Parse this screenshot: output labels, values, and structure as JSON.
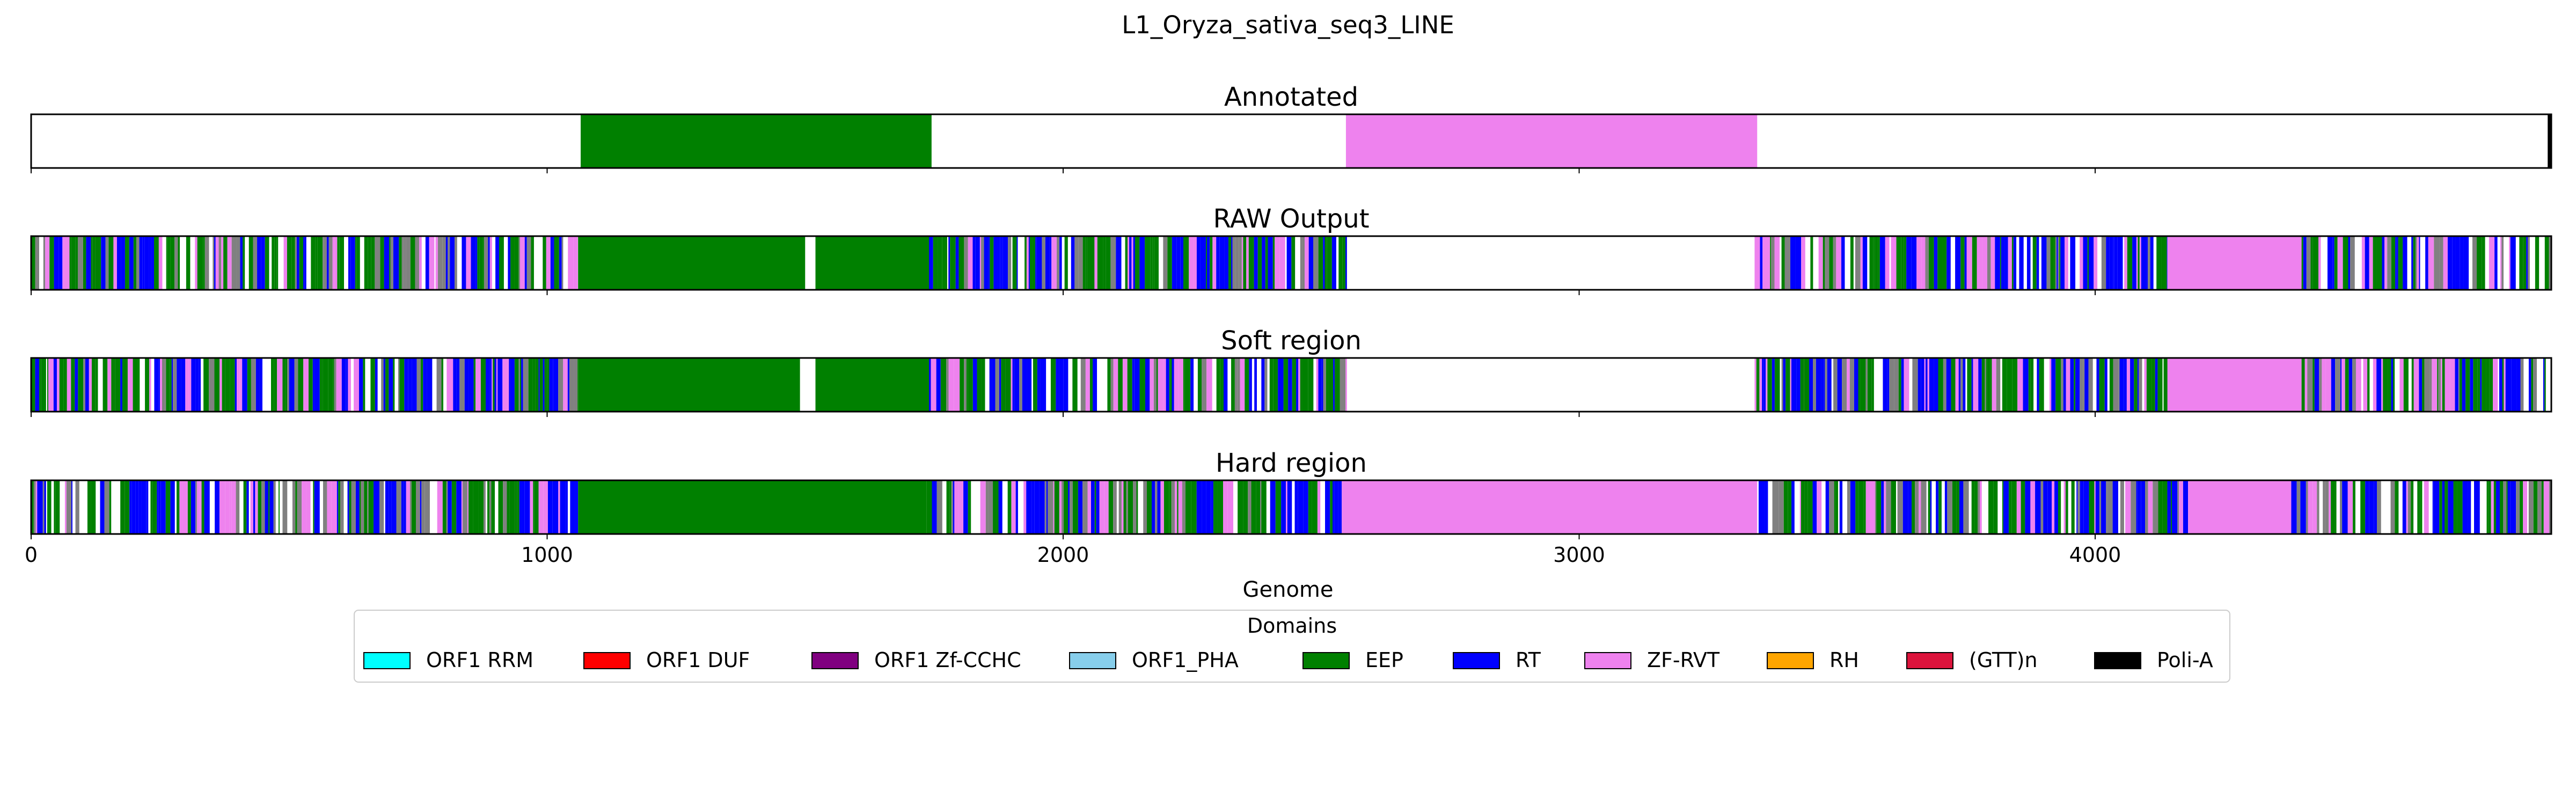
{
  "chart_data": {
    "type": "track",
    "title": "L1_Oryza_sativa_seq3_LINE",
    "xlabel": "Genome",
    "xlim": [
      0,
      4884
    ],
    "x_ticks": [
      0,
      1000,
      2000,
      3000,
      4000
    ],
    "panels": [
      {
        "title": "Annotated",
        "segments": [
          {
            "start": 0,
            "end": 1065,
            "domain": "none"
          },
          {
            "start": 1065,
            "end": 1745,
            "domain": "EEP"
          },
          {
            "start": 1745,
            "end": 2548,
            "domain": "none"
          },
          {
            "start": 2548,
            "end": 3345,
            "domain": "ZF-RVT"
          },
          {
            "start": 3345,
            "end": 4877,
            "domain": "none"
          },
          {
            "start": 4877,
            "end": 4884,
            "domain": "Poli-A"
          }
        ]
      },
      {
        "title": "RAW Output",
        "segments": [
          {
            "start": 0,
            "end": 1060,
            "domain": "mixed"
          },
          {
            "start": 1060,
            "end": 1500,
            "domain": "EEP"
          },
          {
            "start": 1500,
            "end": 1520,
            "domain": "none"
          },
          {
            "start": 1520,
            "end": 1740,
            "domain": "EEP"
          },
          {
            "start": 1740,
            "end": 2550,
            "domain": "mixed"
          },
          {
            "start": 2550,
            "end": 3340,
            "domain": "none"
          },
          {
            "start": 3340,
            "end": 4140,
            "domain": "mixed"
          },
          {
            "start": 4140,
            "end": 4400,
            "domain": "ZF-RVT"
          },
          {
            "start": 4400,
            "end": 4884,
            "domain": "mixed"
          }
        ]
      },
      {
        "title": "Soft region",
        "segments": [
          {
            "start": 0,
            "end": 1060,
            "domain": "mixed"
          },
          {
            "start": 1060,
            "end": 1490,
            "domain": "EEP"
          },
          {
            "start": 1490,
            "end": 1520,
            "domain": "none"
          },
          {
            "start": 1520,
            "end": 1740,
            "domain": "EEP"
          },
          {
            "start": 1740,
            "end": 2550,
            "domain": "mixed"
          },
          {
            "start": 2550,
            "end": 3340,
            "domain": "none"
          },
          {
            "start": 3340,
            "end": 4140,
            "domain": "mixed"
          },
          {
            "start": 4140,
            "end": 4400,
            "domain": "ZF-RVT"
          },
          {
            "start": 4400,
            "end": 4884,
            "domain": "mixed"
          }
        ]
      },
      {
        "title": "Hard region",
        "segments": [
          {
            "start": 0,
            "end": 1060,
            "domain": "mixed"
          },
          {
            "start": 1060,
            "end": 1735,
            "domain": "EEP"
          },
          {
            "start": 1735,
            "end": 2540,
            "domain": "mixed"
          },
          {
            "start": 2540,
            "end": 3345,
            "domain": "ZF-RVT"
          },
          {
            "start": 3345,
            "end": 4180,
            "domain": "mixed"
          },
          {
            "start": 4180,
            "end": 4380,
            "domain": "ZF-RVT"
          },
          {
            "start": 4380,
            "end": 4884,
            "domain": "mixed"
          }
        ]
      }
    ],
    "legend": {
      "title": "Domains",
      "position": "bottom-center",
      "entries": [
        {
          "label": "ORF1 RRM",
          "color": "#00ffff"
        },
        {
          "label": "ORF1 DUF",
          "color": "#ff0000"
        },
        {
          "label": "ORF1 Zf-CCHC",
          "color": "#800080"
        },
        {
          "label": "ORF1_PHA",
          "color": "#87ceeb"
        },
        {
          "label": "EEP",
          "color": "#008000"
        },
        {
          "label": "RT",
          "color": "#0000ff"
        },
        {
          "label": "ZF-RVT",
          "color": "#ee82ee"
        },
        {
          "label": "RH",
          "color": "#ffa500"
        },
        {
          "label": "(GTT)n",
          "color": "#dc143c"
        },
        {
          "label": "Poli-A",
          "color": "#000000"
        }
      ]
    }
  }
}
